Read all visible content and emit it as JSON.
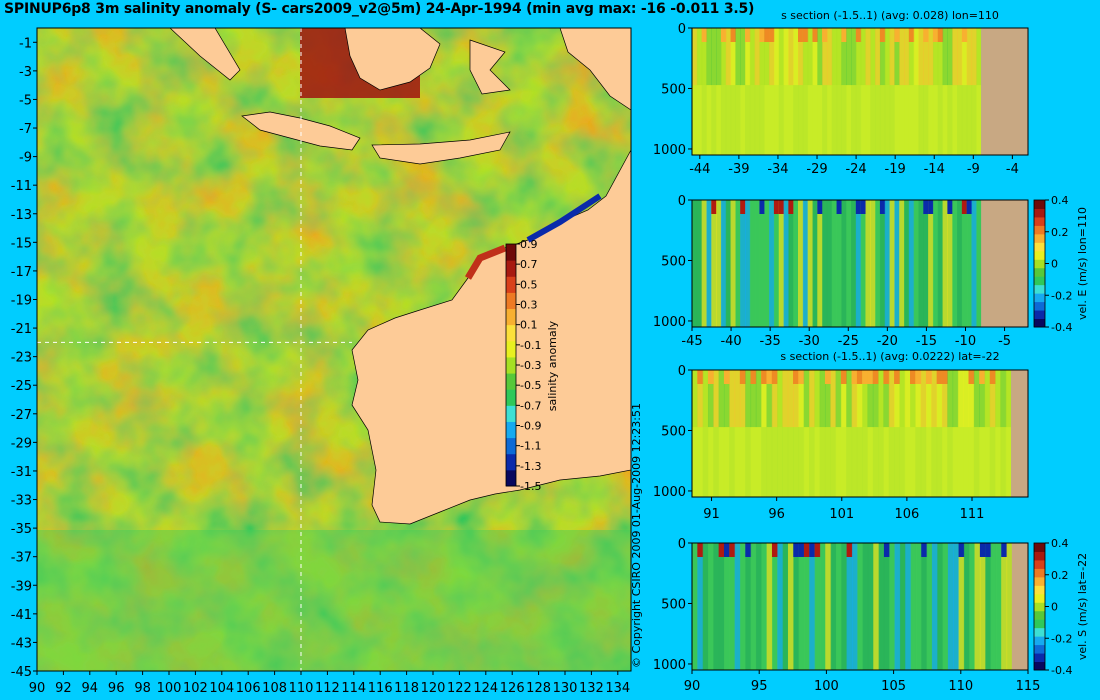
{
  "title": "SPINUP6p8 3m salinity anomaly (S- cars2009_v2@5m) 24-Apr-1994 (min avg max: -16 -0.011 3.5)",
  "copyright": "© Copyright CSIRO 2009   01-Aug-2009 12:23:51",
  "colors": {
    "background": "#00cdff",
    "land_map": "#fdcb97",
    "land_section": "#c8a883",
    "crosshair": "#ffffff"
  },
  "colormap": [
    "#08085e",
    "#0a2aaa",
    "#0d6ad6",
    "#16aaf0",
    "#3ce0d4",
    "#2fc85a",
    "#57c83a",
    "#a6e024",
    "#e8f020",
    "#fce03a",
    "#f8b030",
    "#ee7a24",
    "#d9401a",
    "#a81a10",
    "#6e0a0a"
  ],
  "chart_data": [
    {
      "type": "heatmap",
      "name": "map",
      "xlim": [
        90,
        135
      ],
      "ylim": [
        -45,
        0
      ],
      "x_ticks": [
        "90",
        "92",
        "94",
        "96",
        "98",
        "100",
        "102",
        "104",
        "106",
        "108",
        "110",
        "112",
        "114",
        "116",
        "118",
        "120",
        "122",
        "124",
        "126",
        "128",
        "130",
        "132",
        "134"
      ],
      "y_ticks": [
        "-1",
        "-3",
        "-5",
        "-7",
        "-9",
        "-11",
        "-13",
        "-15",
        "-17",
        "-19",
        "-21",
        "-23",
        "-25",
        "-27",
        "-29",
        "-31",
        "-33",
        "-35",
        "-37",
        "-39",
        "-41",
        "-43",
        "-45"
      ],
      "crosshair": {
        "lon": 110,
        "lat": -22
      },
      "colorbar": {
        "label": "salinity anomaly",
        "range": [
          -1.5,
          0.9
        ],
        "ticks": [
          "0.9",
          "0.7",
          "0.5",
          "0.3",
          "0.1",
          "-0.1",
          "-0.3",
          "-0.5",
          "-0.7",
          "-0.9",
          "-1.1",
          "-1.3",
          "-1.5"
        ]
      }
    },
    {
      "type": "heatmap",
      "name": "s-section-lon",
      "title": "s section (-1.5..1) (avg: 0.028) lon=110",
      "xlim": [
        -45,
        -2
      ],
      "ylim": [
        1050,
        0
      ],
      "x_ticks": [
        "-44",
        "-39",
        "-34",
        "-29",
        "-24",
        "-19",
        "-14",
        "-9",
        "-4"
      ],
      "y_ticks": [
        "0",
        "500",
        "1000"
      ],
      "land_from": -8
    },
    {
      "type": "heatmap",
      "name": "vel-e-section",
      "xlim": [
        -45,
        -2
      ],
      "ylim": [
        1050,
        0
      ],
      "x_ticks": [
        "-45",
        "-40",
        "-35",
        "-30",
        "-25",
        "-20",
        "-15",
        "-10",
        "-5"
      ],
      "y_ticks": [
        "0",
        "500",
        "1000"
      ],
      "land_from": -8,
      "colorbar": {
        "label": "vel. E (m/s) lon=110",
        "range": [
          -0.4,
          0.4
        ],
        "ticks": [
          "0.4",
          "0.2",
          "0",
          "-0.2",
          "-0.4"
        ]
      }
    },
    {
      "type": "heatmap",
      "name": "s-section-lat",
      "title": "s section (-1.5..1) (avg: 0.0222) lat=-22",
      "xlim": [
        89.5,
        115.3
      ],
      "ylim": [
        1050,
        0
      ],
      "x_ticks": [
        "91",
        "96",
        "101",
        "106",
        "111"
      ],
      "y_ticks": [
        "0",
        "500",
        "1000"
      ],
      "land_from": 114
    },
    {
      "type": "heatmap",
      "name": "vel-s-section",
      "xlim": [
        90,
        115
      ],
      "ylim": [
        1050,
        0
      ],
      "x_ticks": [
        "90",
        "95",
        "100",
        "105",
        "110",
        "115"
      ],
      "y_ticks": [
        "0",
        "500",
        "1000"
      ],
      "land_from": 113.8,
      "colorbar": {
        "label": "vel. S (m/s) lat=-22",
        "range": [
          -0.4,
          0.4
        ],
        "ticks": [
          "0.4",
          "0.2",
          "0",
          "-0.2",
          "-0.4"
        ]
      }
    }
  ]
}
